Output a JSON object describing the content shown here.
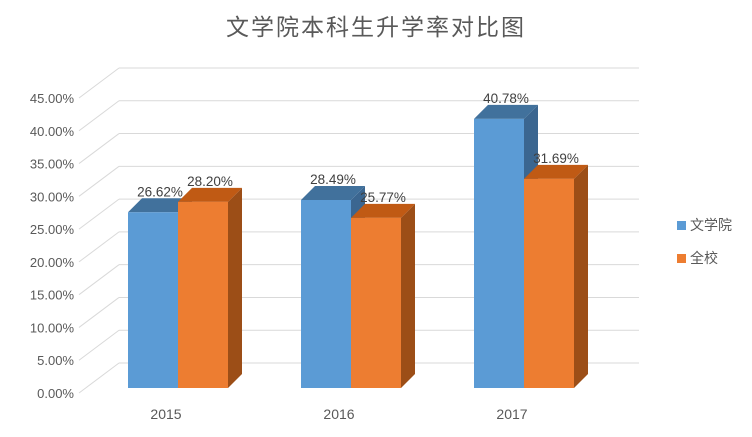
{
  "chart_data": {
    "type": "bar",
    "projection": "3d",
    "title": "文学院本科生升学率对比图",
    "categories": [
      "2015",
      "2016",
      "2017"
    ],
    "series": [
      {
        "name": "文学院",
        "values": [
          26.62,
          28.49,
          40.78
        ],
        "data_labels": [
          "26.62%",
          "28.49%",
          "40.78%"
        ],
        "color": "#5B9BD5",
        "color_top": "#41719C",
        "color_side": "#3B6690"
      },
      {
        "name": "全校",
        "values": [
          28.2,
          25.77,
          31.69
        ],
        "data_labels": [
          "28.20%",
          "25.77%",
          "31.69%"
        ],
        "color": "#ED7D31",
        "color_top": "#C05A14",
        "color_side": "#9C4E17"
      }
    ],
    "xlabel": "",
    "ylabel": "",
    "ylim": [
      0,
      45
    ],
    "y_tick_step": 5,
    "y_tick_labels": [
      "0.00%",
      "5.00%",
      "10.00%",
      "15.00%",
      "20.00%",
      "25.00%",
      "30.00%",
      "35.00%",
      "40.00%",
      "45.00%"
    ],
    "grid": true,
    "gridline_color": "#D9D9D9",
    "legend_position": "right",
    "axis_text_color": "#595959",
    "data_label_color": "#404040",
    "background_color": "#FFFFFF"
  }
}
